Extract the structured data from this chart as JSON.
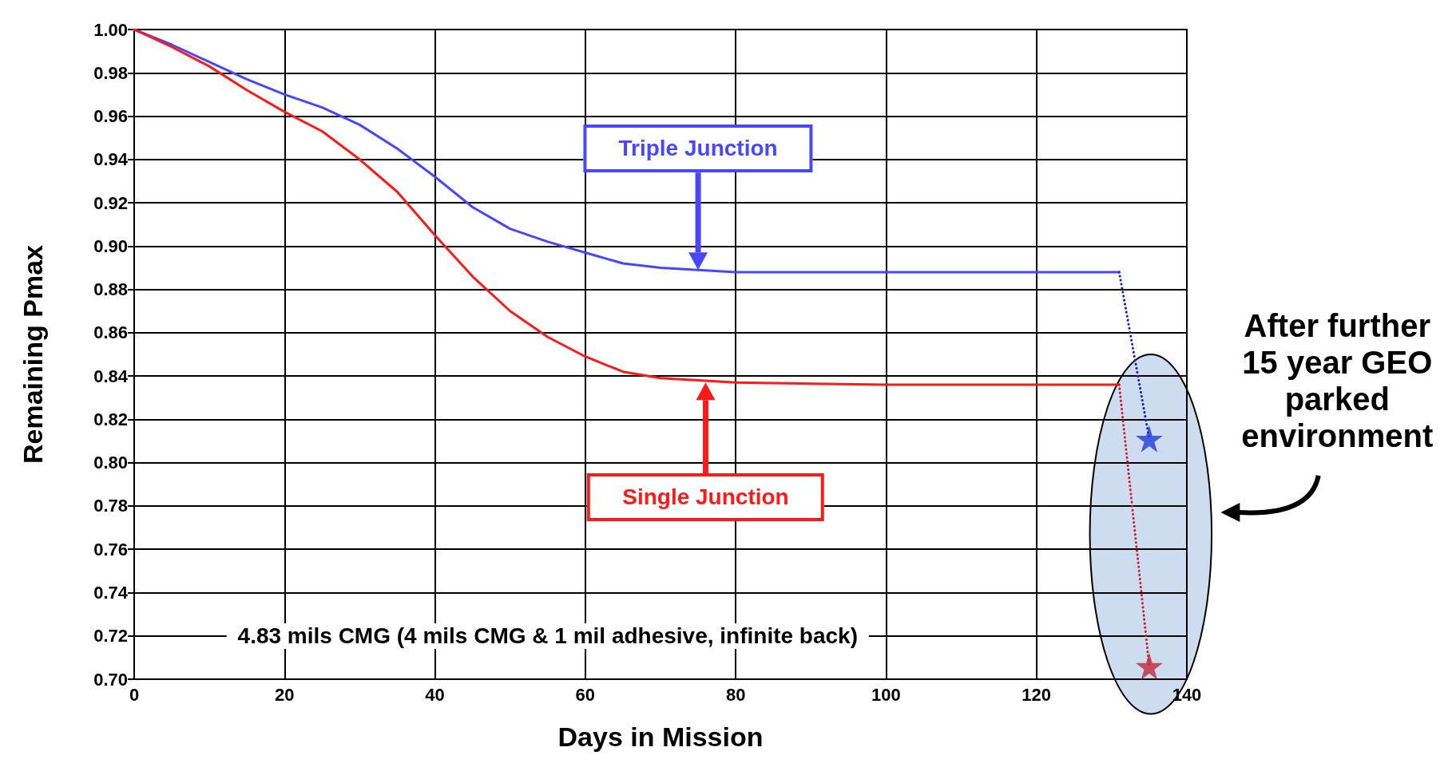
{
  "chart_data": {
    "type": "line",
    "xlabel": "Days in Mission",
    "ylabel": "Remaining Pmax",
    "xlim": [
      0,
      140
    ],
    "xticks": [
      0,
      20,
      40,
      60,
      80,
      100,
      120,
      140
    ],
    "ylim": [
      0.7,
      1.0
    ],
    "yticks": [
      {
        "value": 0.7,
        "label": "0.70"
      },
      0.72,
      0.74,
      0.76,
      0.78,
      {
        "value": 0.8,
        "label": "0.80"
      },
      0.82,
      0.84,
      0.86,
      0.88,
      {
        "value": 0.9,
        "label": "0.90"
      },
      0.92,
      0.94,
      0.96,
      0.98,
      {
        "value": 1.0,
        "label": "1.00"
      }
    ],
    "grid": true,
    "legend": false,
    "series": [
      {
        "name": "Triple Junction",
        "color": "#4747ff",
        "x": [
          0,
          5,
          10,
          15,
          20,
          25,
          30,
          35,
          40,
          45,
          50,
          55,
          60,
          65,
          70,
          75,
          80,
          100,
          131
        ],
        "values": [
          1.0,
          0.993,
          0.985,
          0.977,
          0.97,
          0.964,
          0.956,
          0.945,
          0.932,
          0.918,
          0.908,
          0.902,
          0.897,
          0.892,
          0.89,
          0.889,
          0.888,
          0.888,
          0.888
        ]
      },
      {
        "name": "Single Junction",
        "color": "#ff1a1a",
        "x": [
          0,
          5,
          10,
          15,
          20,
          25,
          30,
          35,
          40,
          45,
          50,
          55,
          60,
          65,
          70,
          80,
          100,
          131
        ],
        "values": [
          1.0,
          0.992,
          0.983,
          0.972,
          0.962,
          0.953,
          0.94,
          0.925,
          0.905,
          0.886,
          0.87,
          0.858,
          0.849,
          0.842,
          0.839,
          0.837,
          0.836,
          0.836
        ]
      },
      {
        "type": "line",
        "line_style": "dotted",
        "marker": "none",
        "color": "#1c1ccc",
        "x": [
          131,
          135
        ],
        "values": [
          0.888,
          0.811
        ]
      },
      {
        "type": "line",
        "line_style": "dotted",
        "marker": "none",
        "color": "#cc1a2a",
        "x": [
          131,
          135
        ],
        "values": [
          0.836,
          0.706
        ]
      },
      {
        "type": "scatter",
        "marker": "star",
        "color": "#1f3fcf",
        "x": [
          135
        ],
        "values": [
          0.811
        ]
      },
      {
        "type": "scatter",
        "marker": "star",
        "color": "#c0283a",
        "x": [
          135
        ],
        "values": [
          0.706
        ]
      }
    ],
    "annotations": [
      "4.83 mils CMG (4 mils CMG & 1 mil adhesive, infinite back)",
      "After further 15 year GEO parked environment"
    ]
  }
}
